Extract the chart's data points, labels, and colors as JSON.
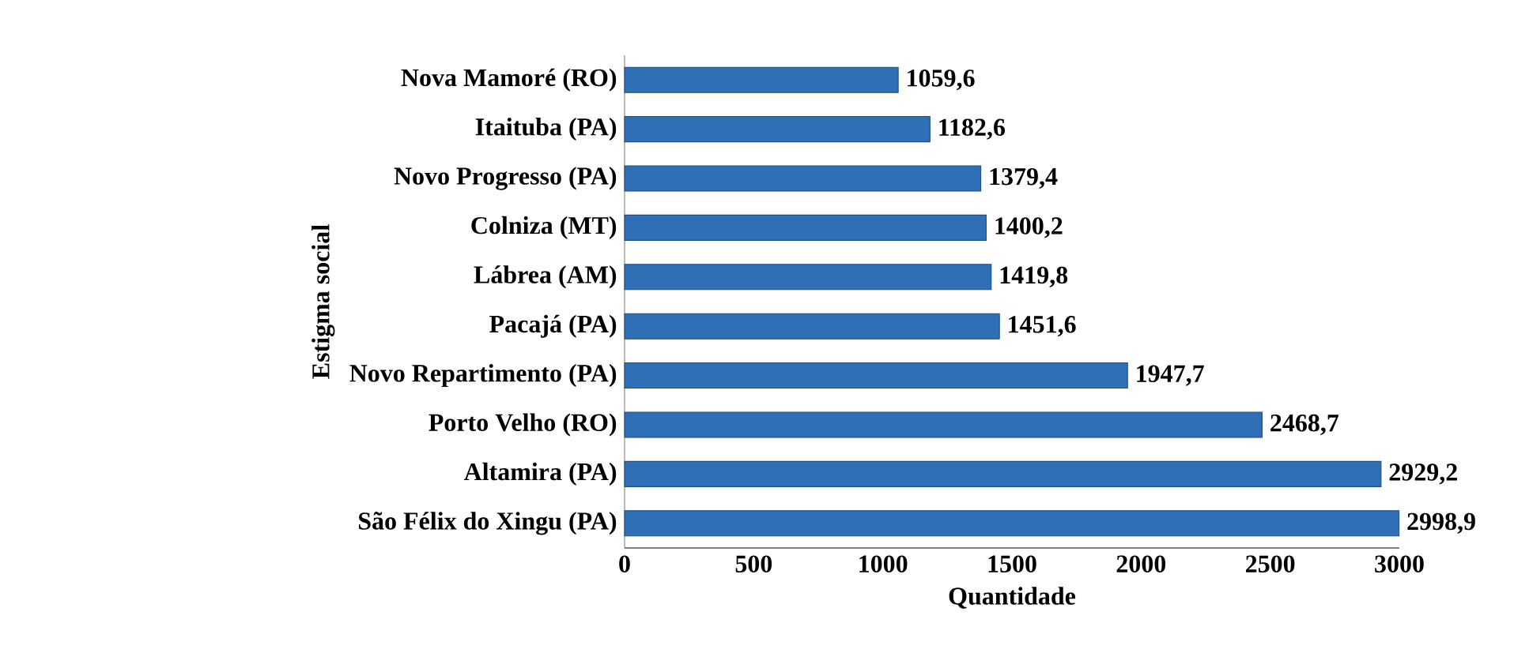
{
  "chart_data": {
    "type": "bar",
    "orientation": "horizontal",
    "xlabel": "Quantidade",
    "ylabel": "Estigma social",
    "categories": [
      "Nova Mamoré (RO)",
      "Itaituba (PA)",
      "Novo Progresso (PA)",
      "Colniza (MT)",
      "Lábrea (AM)",
      "Pacajá (PA)",
      "Novo Repartimento (PA)",
      "Porto Velho (RO)",
      "Altamira (PA)",
      "São Félix do Xingu (PA)"
    ],
    "values": [
      1059.6,
      1182.6,
      1379.4,
      1400.2,
      1419.8,
      1451.6,
      1947.7,
      2468.7,
      2929.2,
      2998.9
    ],
    "value_labels": [
      "1059,6",
      "1182,6",
      "1379,4",
      "1400,2",
      "1419,8",
      "1451,6",
      "1947,7",
      "2468,7",
      "2929,2",
      "2998,9"
    ],
    "color": "#2f6fb5",
    "xlim": [
      0,
      3000
    ],
    "xticks": [
      0,
      500,
      1000,
      1500,
      2000,
      2500,
      3000
    ],
    "grid": false
  }
}
